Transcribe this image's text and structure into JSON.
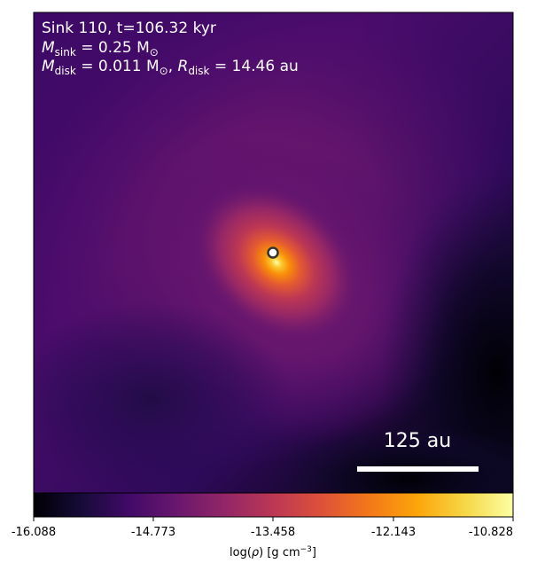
{
  "annotation": {
    "line1": "Sink 110, t=106.32 kyr",
    "line2_sym": "M",
    "line2_sub": "sink",
    "line2_rest": " = 0.25 M",
    "line2_sun": "⊙",
    "line3_sym": "M",
    "line3_sub": "disk",
    "line3_rest": " = 0.011 M",
    "line3_sun": "⊙",
    "line3_sep": ", ",
    "line3_sym2": "R",
    "line3_sub2": "disk",
    "line3_rest2": " = 14.46 au"
  },
  "scale_bar": {
    "label": "125 au",
    "length_au": 125
  },
  "colorbar": {
    "label_prefix": "log(",
    "label_symbol": "ρ",
    "label_suffix": ") [g cm",
    "label_exp": "−3",
    "label_close": "]",
    "colormap": "inferno",
    "ticks": [
      "-16.088",
      "-14.773",
      "-13.458",
      "-12.143",
      "-10.828"
    ]
  },
  "colors": {
    "background_low": "#000004",
    "background_mid": "#4a0c6b",
    "core": "#fcffa4",
    "sink_marker_fill": "#ffffff",
    "sink_marker_edge": "#333333"
  }
}
